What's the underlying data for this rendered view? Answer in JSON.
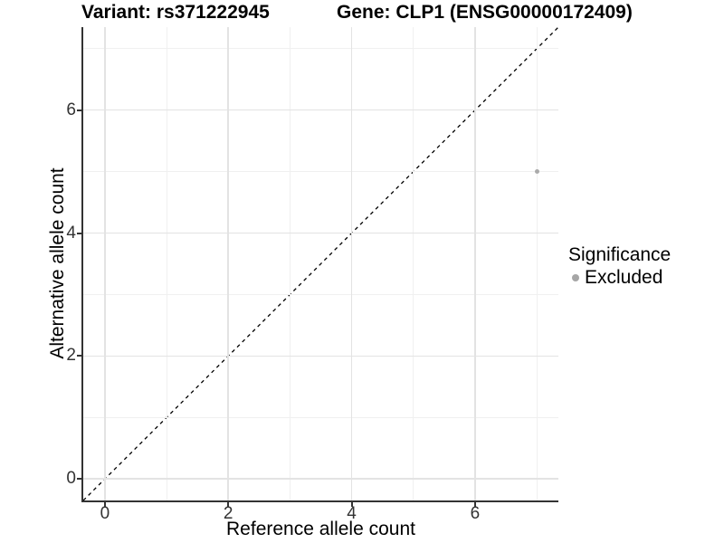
{
  "chart_data": {
    "type": "scatter",
    "title_left": "Variant: rs371222945",
    "title_right": "Gene: CLP1 (ENSG00000172409)",
    "xlabel": "Reference allele count",
    "ylabel": "Alternative allele count",
    "xlim": [
      -0.35,
      7.35
    ],
    "ylim": [
      -0.35,
      7.35
    ],
    "x_major_ticks": [
      0,
      2,
      4,
      6
    ],
    "x_minor_ticks": [
      1,
      3,
      5,
      7
    ],
    "y_major_ticks": [
      0,
      2,
      4,
      6
    ],
    "y_minor_ticks": [
      1,
      3,
      5,
      7
    ],
    "x_tick_labels": [
      "0",
      "2",
      "4",
      "6"
    ],
    "y_tick_labels": [
      "0",
      "2",
      "4",
      "6"
    ],
    "grid": true,
    "reference_line": {
      "kind": "identity",
      "slope": 1,
      "intercept": 0,
      "style": "dashed",
      "color": "#000000"
    },
    "series": [
      {
        "name": "Excluded",
        "color": "#ababab",
        "points": [
          {
            "x": 7,
            "y": 5
          }
        ]
      }
    ],
    "legend": {
      "title": "Significance",
      "position": "right",
      "items": [
        {
          "label": "Excluded",
          "color": "#a6a6a6"
        }
      ]
    }
  },
  "colors": {
    "background": "#ffffff",
    "axis_line": "#333333",
    "major_grid": "#e3e3e3",
    "minor_grid": "#f0f0f0",
    "tick_label": "#333333",
    "text": "#000000"
  }
}
